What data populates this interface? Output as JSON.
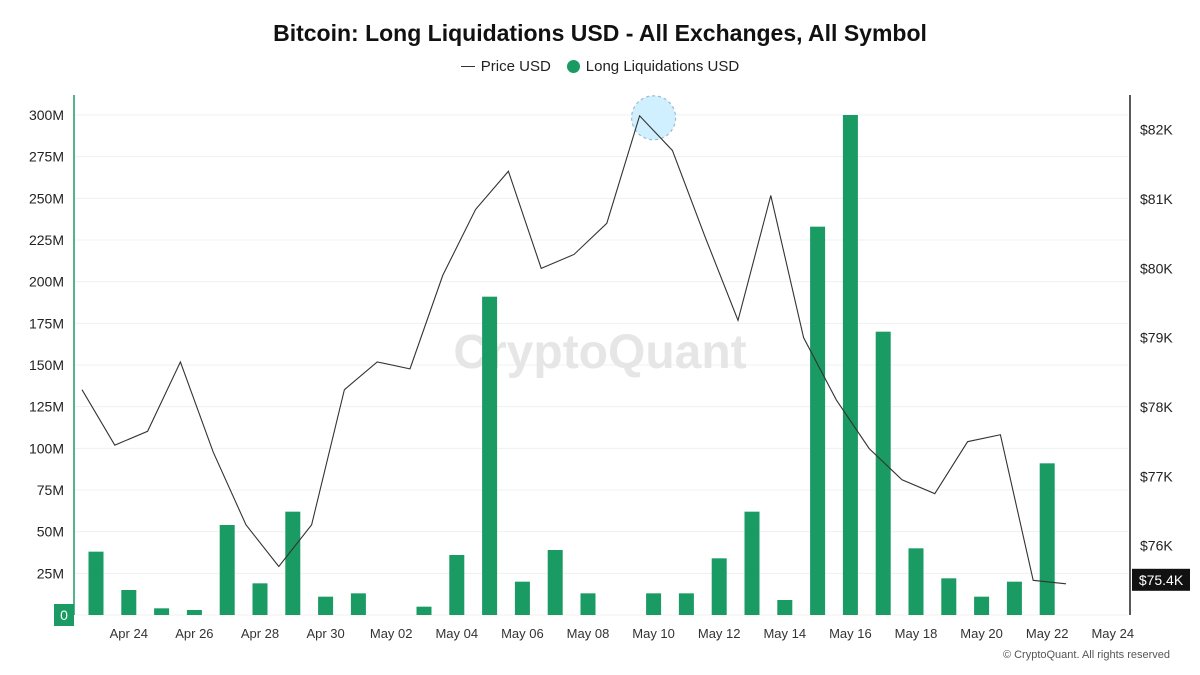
{
  "chart_data": {
    "type": "bar",
    "title": "Bitcoin: Long Liquidations USD - All Exchanges, All Symbol",
    "watermark": "CryptoQuant",
    "copyright": "© CryptoQuant. All rights reserved",
    "legend": [
      {
        "name": "Price USD",
        "marker": "line",
        "color": "#333333"
      },
      {
        "name": "Long Liquidations USD",
        "marker": "dot",
        "color": "#1a9b63"
      }
    ],
    "dates": [
      "Apr 23",
      "Apr 24",
      "Apr 25",
      "Apr 26",
      "Apr 27",
      "Apr 28",
      "Apr 29",
      "Apr 30",
      "May 01",
      "May 02",
      "May 03",
      "May 04",
      "May 05",
      "May 06",
      "May 07",
      "May 08",
      "May 09",
      "May 10",
      "May 11",
      "May 12",
      "May 13",
      "May 14",
      "May 15",
      "May 16",
      "May 17",
      "May 18",
      "May 19",
      "May 20",
      "May 21",
      "May 22",
      "May 23"
    ],
    "series": [
      {
        "name": "Long Liquidations USD",
        "type": "bar",
        "axis": "left",
        "color": "#1a9b63",
        "values": [
          38,
          15,
          4,
          3,
          54,
          19,
          62,
          11,
          13,
          0,
          5,
          36,
          191,
          20,
          39,
          13,
          0,
          13,
          13,
          34,
          62,
          9,
          233,
          300,
          170,
          40,
          22,
          11,
          20,
          91,
          0
        ]
      },
      {
        "name": "Price USD",
        "type": "line",
        "axis": "right",
        "color": "#333333",
        "values": [
          78.25,
          77.45,
          77.65,
          78.65,
          77.35,
          76.3,
          75.7,
          76.3,
          78.25,
          78.65,
          78.55,
          79.9,
          80.85,
          81.4,
          80.0,
          80.2,
          80.65,
          82.2,
          81.7,
          80.45,
          79.25,
          81.05,
          79.0,
          78.1,
          77.4,
          76.95,
          76.75,
          77.5,
          77.6,
          75.5,
          75.45
        ]
      }
    ],
    "x_ticks": [
      "Apr 24",
      "Apr 26",
      "Apr 28",
      "Apr 30",
      "May 02",
      "May 04",
      "May 06",
      "May 08",
      "May 10",
      "May 12",
      "May 14",
      "May 16",
      "May 18",
      "May 20",
      "May 22",
      "May 24"
    ],
    "y_left": {
      "ticks": [
        "0",
        "25M",
        "50M",
        "75M",
        "100M",
        "125M",
        "150M",
        "175M",
        "200M",
        "225M",
        "250M",
        "275M",
        "300M"
      ],
      "range": [
        0,
        312
      ]
    },
    "y_right": {
      "ticks": [
        "$76K",
        "$77K",
        "$78K",
        "$79K",
        "$80K",
        "$81K",
        "$82K"
      ],
      "range": [
        75.0,
        82.5
      ]
    },
    "last_price_label": "$75.4K",
    "highlight_date": "May 10",
    "grid": true
  }
}
